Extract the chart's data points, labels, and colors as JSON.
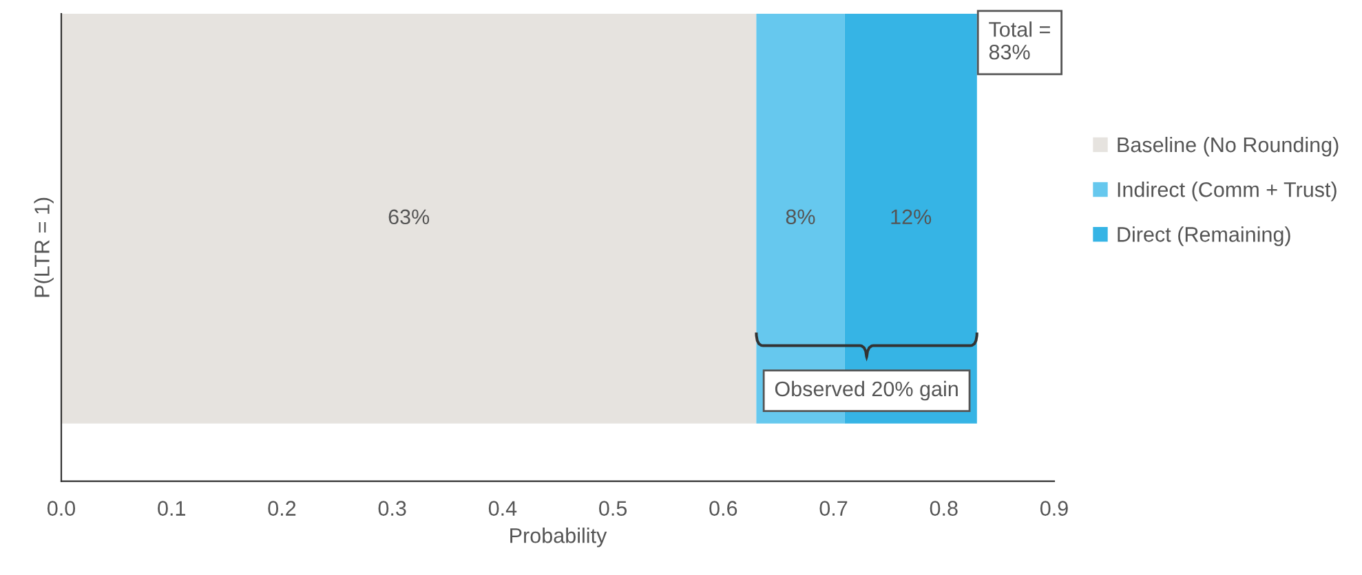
{
  "chart_data": {
    "type": "bar",
    "orientation": "horizontal",
    "stacked": true,
    "categories": [
      null
    ],
    "series": [
      {
        "name": "Baseline (No Rounding)",
        "color": "#e6e3df",
        "values": [
          0.63
        ],
        "value_labels": [
          "63%"
        ]
      },
      {
        "name": "Indirect (Comm + Trust)",
        "color": "#66c8ee",
        "values": [
          0.08
        ],
        "value_labels": [
          "8%"
        ]
      },
      {
        "name": "Direct (Remaining)",
        "color": "#36b4e5",
        "values": [
          0.12
        ],
        "value_labels": [
          "12%"
        ]
      }
    ],
    "xlabel": "Probability",
    "ylabel": "P(LTR = 1)",
    "xlim": [
      0,
      0.9
    ],
    "xticks": [
      {
        "value": 0,
        "label": "0.0"
      },
      0.1,
      0.2,
      0.3,
      0.4,
      0.5,
      0.6,
      0.7,
      0.8,
      0.9
    ],
    "tick_labels": "x",
    "grid": false,
    "legend": "right",
    "annotations": [
      {
        "text": "Total =\n83%",
        "x": 0.83
      },
      "Observed 20% gain"
    ]
  }
}
